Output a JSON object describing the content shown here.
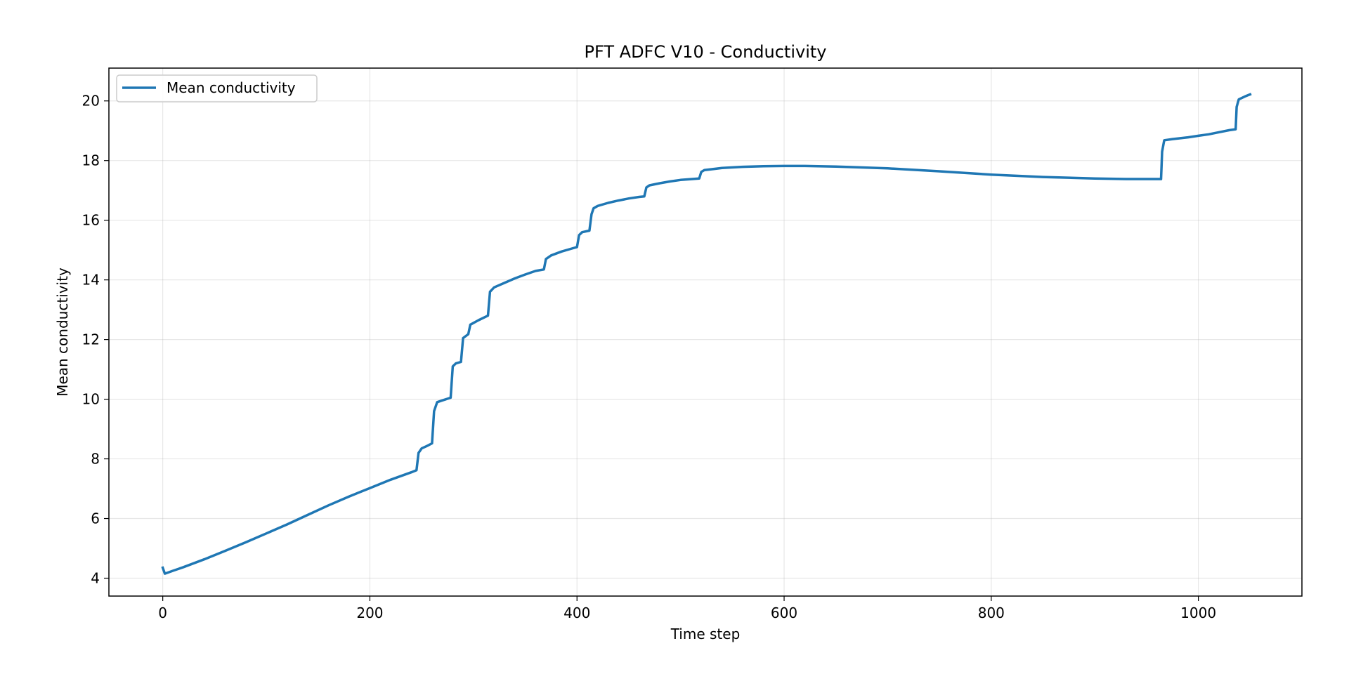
{
  "chart_data": {
    "type": "line",
    "title": "PFT ADFC V10 - Conductivity",
    "xlabel": "Time step",
    "ylabel": "Mean conductivity",
    "xlim": [
      -52,
      1100
    ],
    "ylim": [
      3.4,
      21.1
    ],
    "xticks": [
      0,
      200,
      400,
      600,
      800,
      1000
    ],
    "yticks": [
      4,
      6,
      8,
      10,
      12,
      14,
      16,
      18,
      20
    ],
    "grid": true,
    "legend": {
      "placement": "top-left"
    },
    "series": [
      {
        "name": "Mean conductivity",
        "color": "#1f77b4",
        "x": [
          0,
          2,
          10,
          20,
          40,
          60,
          80,
          100,
          120,
          140,
          160,
          180,
          200,
          220,
          240,
          245,
          247,
          250,
          255,
          260,
          262,
          265,
          270,
          278,
          280,
          283,
          288,
          290,
          295,
          297,
          305,
          314,
          316,
          320,
          330,
          340,
          350,
          360,
          368,
          370,
          375,
          385,
          395,
          400,
          402,
          405,
          412,
          414,
          416,
          420,
          430,
          440,
          450,
          460,
          465,
          467,
          470,
          480,
          490,
          500,
          518,
          520,
          523,
          540,
          560,
          580,
          600,
          620,
          650,
          700,
          750,
          800,
          850,
          900,
          930,
          964,
          965,
          967,
          975,
          990,
          1000,
          1010,
          1020,
          1030,
          1036,
          1037,
          1039,
          1045,
          1050
        ],
        "y": [
          4.35,
          4.15,
          4.25,
          4.37,
          4.63,
          4.91,
          5.2,
          5.5,
          5.8,
          6.12,
          6.44,
          6.74,
          7.02,
          7.3,
          7.55,
          7.62,
          8.2,
          8.35,
          8.43,
          8.52,
          9.6,
          9.9,
          9.96,
          10.05,
          11.1,
          11.2,
          11.25,
          12.05,
          12.18,
          12.5,
          12.65,
          12.8,
          13.6,
          13.75,
          13.9,
          14.05,
          14.18,
          14.3,
          14.35,
          14.7,
          14.82,
          14.95,
          15.05,
          15.1,
          15.5,
          15.6,
          15.65,
          16.2,
          16.4,
          16.48,
          16.58,
          16.66,
          16.73,
          16.78,
          16.8,
          17.1,
          17.17,
          17.24,
          17.3,
          17.35,
          17.4,
          17.62,
          17.68,
          17.75,
          17.79,
          17.81,
          17.82,
          17.82,
          17.8,
          17.74,
          17.64,
          17.53,
          17.45,
          17.4,
          17.38,
          17.38,
          18.3,
          18.68,
          18.72,
          18.78,
          18.83,
          18.88,
          18.95,
          19.02,
          19.05,
          19.8,
          20.05,
          20.15,
          20.22
        ]
      }
    ]
  }
}
